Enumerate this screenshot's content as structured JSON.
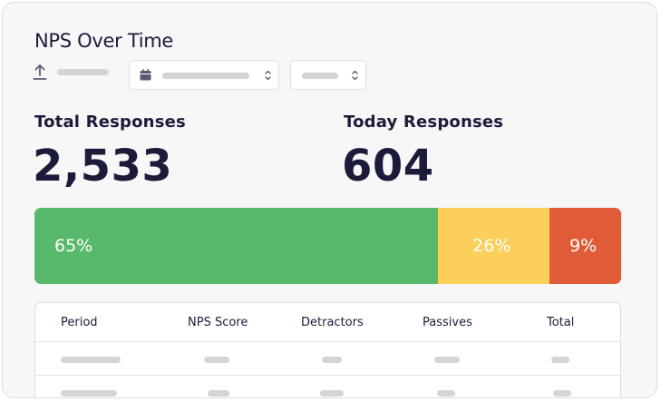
{
  "title": "NPS Over Time",
  "stats": {
    "total_label": "Total Responses",
    "total_value": "2,533",
    "today_label": "Today Responses",
    "today_value": "604"
  },
  "distribution": [
    {
      "label": "65%",
      "value": 65,
      "color": "#58b96c"
    },
    {
      "label": "26%",
      "value": 26,
      "color": "#fbcf5a"
    },
    {
      "label": "9%",
      "value": 9,
      "color": "#e25b38"
    }
  ],
  "table": {
    "headers": [
      "Period",
      "NPS Score",
      "Detractors",
      "Passives",
      "Total"
    ]
  },
  "icons": {
    "export": "upload-icon",
    "calendar": "calendar-icon",
    "caret": "chevron-updown-icon"
  }
}
